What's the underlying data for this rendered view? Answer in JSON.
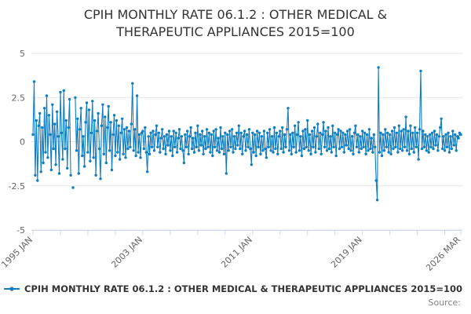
{
  "title": "CPIH MONTHLY RATE 06.1.2 : OTHER MEDICAL & THERAPEUTIC APPLIANCES 2015=100",
  "legend": {
    "label": "CPIH MONTHLY RATE 06.1.2 : OTHER MEDICAL & THERAPEUTIC APPLIANCES 2015=100"
  },
  "source_label": "Source:",
  "colors": {
    "line": "#0f7dc0",
    "grid": "#e6e6e6",
    "axis": "#ccd6eb",
    "title_text": "#333333",
    "axis_text": "#666666",
    "source_text": "#808080"
  },
  "chart_data": {
    "type": "line",
    "title": "CPIH MONTHLY RATE 06.1.2 : OTHER MEDICAL & THERAPEUTIC APPLIANCES 2015=100",
    "xlabel": "",
    "ylabel": "",
    "ylim": [
      -5,
      5
    ],
    "y_ticks": [
      5,
      2.5,
      0,
      -2.5,
      -5
    ],
    "y_tick_labels": [
      "5",
      "2.5",
      "0",
      "-2.5",
      "-5"
    ],
    "grid": "horizontal",
    "legend_position": "bottom-left",
    "x_minor_tick_interval_years": 2,
    "x_tick_labels": [
      {
        "label": "1995 JAN",
        "month_index": 0
      },
      {
        "label": "2003 JAN",
        "month_index": 96
      },
      {
        "label": "2011 JAN",
        "month_index": 192
      },
      {
        "label": "2019 JAN",
        "month_index": 288
      },
      {
        "label": "2026 MAR",
        "month_index": 374
      }
    ],
    "series": [
      {
        "name": "CPIH MONTHLY RATE 06.1.2 : OTHER MEDICAL & THERAPEUTIC APPLIANCES 2015=100",
        "color": "#0f7dc0",
        "frequency": "monthly",
        "start": "1995 JAN",
        "end": "2026 MAR",
        "values": [
          0.4,
          3.4,
          -1.9,
          1.2,
          -2.2,
          0.9,
          1.6,
          -1.7,
          0.8,
          -1.2,
          1.9,
          -0.6,
          2.6,
          -0.9,
          1.5,
          0.4,
          -1.6,
          2.1,
          -0.4,
          1.0,
          -1.3,
          1.7,
          0.3,
          -1.8,
          2.8,
          0.5,
          -1.0,
          2.9,
          -0.4,
          1.2,
          -1.5,
          0.8,
          2.4,
          -1.9,
          null,
          -2.6,
          null,
          2.5,
          -0.5,
          1.3,
          -1.8,
          0.7,
          1.9,
          -0.8,
          0.3,
          -1.4,
          1.1,
          2.2,
          -0.6,
          1.8,
          -1.1,
          0.5,
          2.3,
          -0.9,
          1.2,
          -1.9,
          0.6,
          1.6,
          -0.4,
          -2.1,
          0.9,
          2.1,
          -0.7,
          1.4,
          -1.2,
          0.8,
          2.0,
          -0.5,
          1.1,
          -1.6,
          0.4,
          1.5,
          -0.8,
          1.2,
          -0.6,
          0.9,
          -1.0,
          0.5,
          1.3,
          -0.7,
          0.7,
          -0.9,
          0.8,
          -0.4,
          0.6,
          -0.3,
          1.0,
          3.3,
          -0.5,
          0.7,
          -0.8,
          2.6,
          -0.6,
          0.4,
          -0.9,
          0.5,
          0.6,
          -0.4,
          0.8,
          -0.6,
          -1.7,
          0.3,
          -0.7,
          0.5,
          -0.3,
          0.6,
          -0.5,
          0.4,
          0.9,
          -0.3,
          0.5,
          -0.6,
          0.2,
          0.7,
          -0.4,
          0.3,
          -0.7,
          0.4,
          -0.2,
          0.6,
          -0.5,
          0.3,
          -0.8,
          0.6,
          -0.3,
          0.5,
          -0.6,
          0.2,
          0.7,
          -0.4,
          0.3,
          -0.5,
          -1.2,
          0.4,
          -0.3,
          0.6,
          -0.7,
          0.3,
          0.8,
          -0.4,
          0.2,
          -0.6,
          0.5,
          -0.3,
          0.9,
          -0.5,
          0.4,
          -0.2,
          0.6,
          -0.7,
          0.3,
          -0.4,
          0.7,
          -0.3,
          0.5,
          -0.6,
          0.4,
          -0.8,
          0.6,
          -0.3,
          0.7,
          -0.5,
          0.2,
          -0.6,
          0.8,
          -0.4,
          0.3,
          -0.7,
          0.5,
          -1.8,
          0.4,
          -0.5,
          0.6,
          -0.3,
          0.7,
          -0.6,
          0.3,
          -0.4,
          0.5,
          -0.2,
          0.9,
          -0.4,
          0.5,
          -0.7,
          0.3,
          0.6,
          -0.5,
          0.4,
          -0.3,
          0.7,
          -0.4,
          -1.3,
          0.5,
          -0.6,
          0.4,
          -0.8,
          0.6,
          -0.3,
          0.5,
          -0.7,
          0.3,
          -0.5,
          0.6,
          -0.4,
          -0.9,
          0.5,
          -0.3,
          0.7,
          -0.5,
          0.3,
          -0.6,
          0.8,
          -0.4,
          0.5,
          -0.7,
          0.3,
          0.6,
          -0.4,
          0.8,
          -0.6,
          0.4,
          -0.3,
          0.7,
          1.9,
          -0.5,
          0.4,
          -0.7,
          0.5,
          -0.3,
          0.9,
          -0.6,
          0.4,
          1.1,
          -0.5,
          0.3,
          -0.8,
          0.6,
          -0.4,
          0.7,
          -0.3,
          1.2,
          -0.5,
          0.4,
          -0.7,
          0.6,
          -0.3,
          0.8,
          -0.6,
          0.3,
          1.0,
          -0.4,
          0.5,
          -0.7,
          0.4,
          1.1,
          -0.3,
          0.6,
          -0.5,
          0.8,
          -0.4,
          0.3,
          -0.6,
          0.9,
          -0.3,
          0.5,
          -0.8,
          0.4,
          0.7,
          -0.4,
          0.6,
          -0.3,
          0.5,
          -0.6,
          0.4,
          -0.2,
          0.6,
          -0.4,
          0.7,
          -0.5,
          0.3,
          -0.7,
          0.5,
          0.9,
          -0.3,
          0.4,
          -0.6,
          0.3,
          -0.4,
          0.6,
          -0.3,
          0.5,
          -0.7,
          0.4,
          -0.5,
          0.7,
          -0.4,
          0.2,
          -0.6,
          0.4,
          -0.3,
          -2.2,
          -3.3,
          4.2,
          -0.6,
          0.5,
          -0.8,
          0.4,
          -0.5,
          0.7,
          -0.3,
          0.5,
          -0.6,
          0.4,
          -0.7,
          0.6,
          -0.4,
          0.8,
          -0.3,
          0.5,
          -0.6,
          0.9,
          -0.4,
          0.6,
          -0.5,
          0.7,
          -0.3,
          1.4,
          -0.5,
          0.6,
          -0.7,
          0.9,
          -0.4,
          0.5,
          -0.6,
          0.8,
          -0.3,
          0.5,
          -1.0,
          0.7,
          4.0,
          -0.4,
          0.6,
          -0.3,
          0.4,
          -0.5,
          0.3,
          -0.6,
          0.4,
          -0.3,
          0.5,
          -0.4,
          0.6,
          -0.2,
          0.4,
          -0.5,
          0.3,
          0.8,
          1.3,
          -0.4,
          0.3,
          -0.5,
          0.4,
          -0.3,
          0.5,
          -0.6,
          0.3,
          -0.4,
          0.6,
          -0.2,
          0.4,
          -0.5,
          0.3,
          0.2,
          0.5,
          0.4
        ]
      }
    ]
  }
}
